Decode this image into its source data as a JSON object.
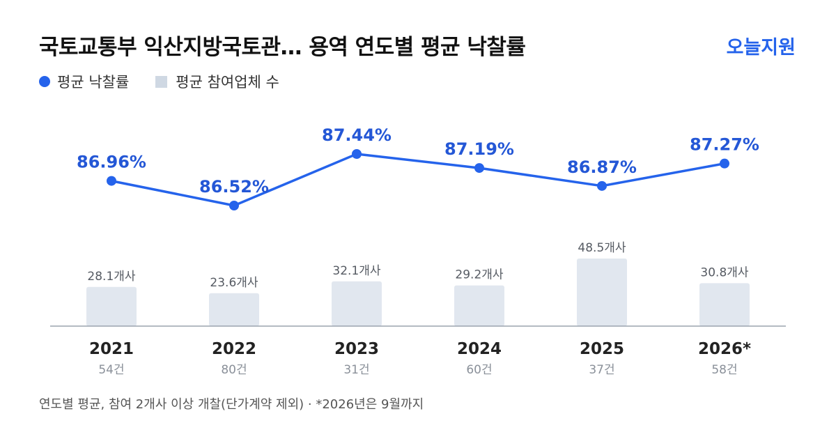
{
  "header": {
    "title": "국토교통부 익산지방국토관… 용역 연도별 평균 낙찰률",
    "brand": "오늘지원"
  },
  "legend": {
    "rate": "평균 낙찰률",
    "participants": "평균 참여업체 수"
  },
  "footnote": "연도별 평균, 참여 2개사 이상 개찰(단가계약 제외) · *2026년은 9월까지",
  "colors": {
    "accent": "#2563eb",
    "bar": "#e1e7ef",
    "axis": "#9aa3ad"
  },
  "chart_data": {
    "type": "bar+line",
    "title": "국토교통부 익산지방국토관… 용역 연도별 평균 낙찰률",
    "categories": [
      "2021",
      "2022",
      "2023",
      "2024",
      "2025",
      "2026*"
    ],
    "counts": [
      "54건",
      "80건",
      "31건",
      "60건",
      "37건",
      "58건"
    ],
    "series": [
      {
        "name": "평균 낙찰률",
        "kind": "line",
        "values": [
          86.96,
          86.52,
          87.44,
          87.19,
          86.87,
          87.27
        ],
        "labels": [
          "86.96%",
          "86.52%",
          "87.44%",
          "87.19%",
          "86.87%",
          "87.27%"
        ]
      },
      {
        "name": "평균 참여업체 수",
        "kind": "bar",
        "values": [
          28.1,
          23.6,
          32.1,
          29.2,
          48.5,
          30.8
        ],
        "labels": [
          "28.1개사",
          "23.6개사",
          "32.1개사",
          "29.2개사",
          "48.5개사",
          "30.8개사"
        ]
      }
    ],
    "grid": false,
    "legend_position": "top-left"
  }
}
